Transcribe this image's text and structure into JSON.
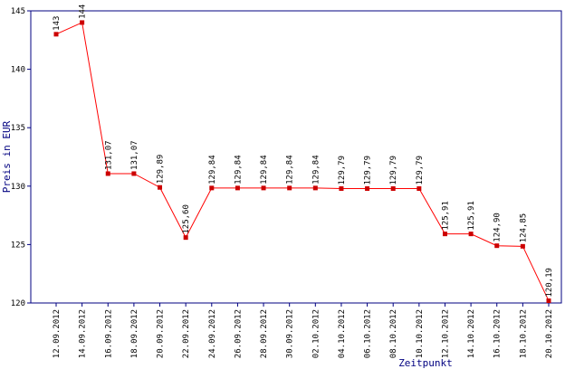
{
  "chart_data": {
    "type": "line",
    "title": "",
    "xlabel": "Zeitpunkt",
    "ylabel": "Preis in EUR",
    "ylim": [
      120,
      145
    ],
    "yticks": [
      120,
      125,
      130,
      135,
      140,
      145
    ],
    "grid": false,
    "legend": "none",
    "line_color": "#ff0000",
    "marker_color": "#cc0000",
    "axis_color": "#000080",
    "categories": [
      "12.09.2012",
      "14.09.2012",
      "16.09.2012",
      "18.09.2012",
      "20.09.2012",
      "22.09.2012",
      "24.09.2012",
      "26.09.2012",
      "28.09.2012",
      "30.09.2012",
      "02.10.2012",
      "04.10.2012",
      "06.10.2012",
      "08.10.2012",
      "10.10.2012",
      "12.10.2012",
      "14.10.2012",
      "16.10.2012",
      "18.10.2012",
      "20.10.2012"
    ],
    "values": [
      143,
      144,
      131.07,
      131.07,
      129.89,
      125.6,
      129.84,
      129.84,
      129.84,
      129.84,
      129.84,
      129.79,
      129.79,
      129.79,
      129.79,
      125.91,
      125.91,
      124.9,
      124.85,
      120.19
    ],
    "labels": [
      "143",
      "144",
      "131,07",
      "131,07",
      "129,89",
      "125,60",
      "129,84",
      "129,84",
      "129,84",
      "129,84",
      "129,84",
      "129,79",
      "129,79",
      "129,79",
      "129,79",
      "125,91",
      "125,91",
      "124,90",
      "124,85",
      "120,19"
    ]
  }
}
